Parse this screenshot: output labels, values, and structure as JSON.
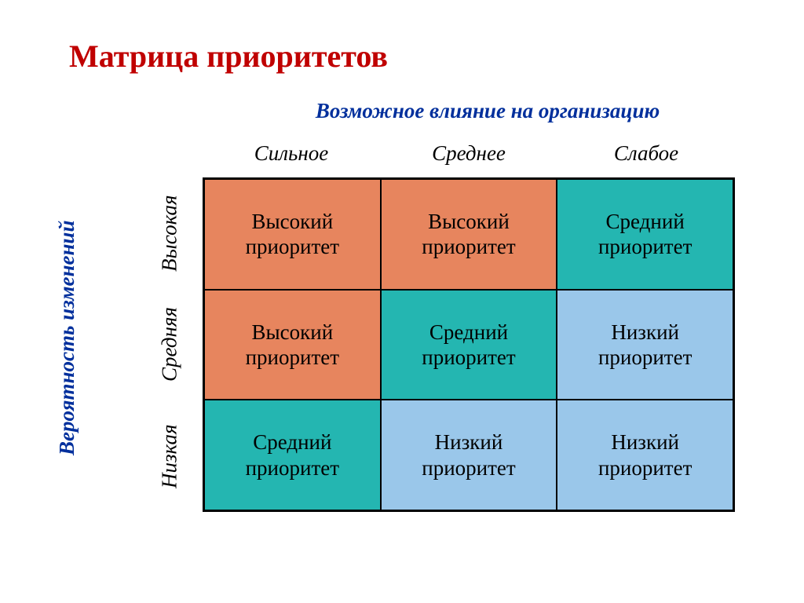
{
  "title": "Матрица приоритетов",
  "x_axis": {
    "title": "Возможное влияние на организацию",
    "headers": [
      "Сильное",
      "Среднее",
      "Слабое"
    ]
  },
  "y_axis": {
    "title": "Вероятность изменений",
    "labels": [
      "Высокая",
      "Средняя",
      "Низкая"
    ]
  },
  "matrix": {
    "type": "heatmap",
    "rows": 3,
    "cols": 3,
    "cells": [
      {
        "text": "Высокий приоритет",
        "bg": "#e7855e"
      },
      {
        "text": "Высокий приоритет",
        "bg": "#e7855e"
      },
      {
        "text": "Средний приоритет",
        "bg": "#24b6b1"
      },
      {
        "text": "Высокий приоритет",
        "bg": "#e7855e"
      },
      {
        "text": "Средний приоритет",
        "bg": "#24b6b1"
      },
      {
        "text": "Низкий приоритет",
        "bg": "#9ac7ea"
      },
      {
        "text": "Средний приоритет",
        "bg": "#24b6b1"
      },
      {
        "text": "Низкий приоритет",
        "bg": "#9ac7ea"
      },
      {
        "text": "Низкий приоритет",
        "bg": "#9ac7ea"
      }
    ],
    "border_color": "#000000",
    "cell_fontsize": 27
  },
  "colors": {
    "title": "#c00000",
    "axis_title": "#002f9c",
    "background": "#ffffff",
    "high": "#e7855e",
    "medium": "#24b6b1",
    "low": "#9ac7ea"
  },
  "fonts": {
    "family": "Times New Roman",
    "title_size": 40,
    "axis_title_size": 27,
    "header_size": 27,
    "cell_size": 27
  }
}
